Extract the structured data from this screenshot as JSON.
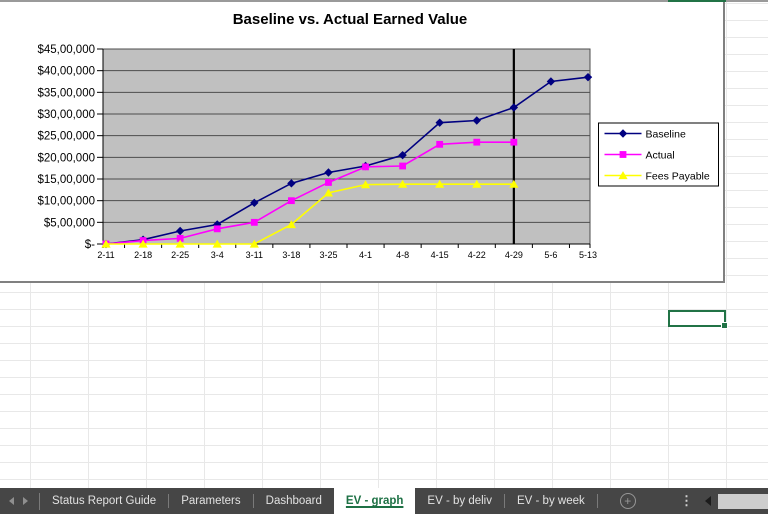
{
  "chart_data": {
    "type": "line",
    "title": "Baseline vs. Actual Earned Value",
    "categories": [
      "2-11",
      "2-18",
      "2-25",
      "3-4",
      "3-11",
      "3-18",
      "3-25",
      "4-1",
      "4-8",
      "4-15",
      "4-22",
      "4-29",
      "5-6",
      "5-13"
    ],
    "series": [
      {
        "name": "Baseline",
        "color": "#000080",
        "marker": "diamond",
        "values": [
          0,
          100000,
          300000,
          450000,
          950000,
          1400000,
          1650000,
          1800000,
          2050000,
          2800000,
          2850000,
          3150000,
          3750000,
          3850000
        ]
      },
      {
        "name": "Actual",
        "color": "#ff00ff",
        "marker": "square",
        "values": [
          0,
          80000,
          130000,
          350000,
          500000,
          1000000,
          1420000,
          1780000,
          1800000,
          2300000,
          2350000,
          2350000,
          null,
          null
        ]
      },
      {
        "name": "Fees Payable",
        "color": "#ffff00",
        "marker": "triangle",
        "values": [
          0,
          0,
          0,
          0,
          0,
          450000,
          1180000,
          1370000,
          1380000,
          1380000,
          1380000,
          1380000,
          null,
          null
        ]
      }
    ],
    "xlabel": "",
    "ylabel": "",
    "ylim": [
      0,
      4500000
    ],
    "y_tick_interval": 500000,
    "y_ticks": [
      "$45,00,000",
      "$40,00,000",
      "$35,00,000",
      "$30,00,000",
      "$25,00,000",
      "$20,00,000",
      "$15,00,000",
      "$10,00,000",
      "$5,00,000",
      "$-"
    ],
    "grid": true,
    "legend_position": "right",
    "plot_bg": "#c0c0c0",
    "status_line_category": "4-29"
  },
  "sheet_tabs": {
    "tabs": [
      {
        "label": "Status Report Guide",
        "active": false
      },
      {
        "label": "Parameters",
        "active": false
      },
      {
        "label": "Dashboard",
        "active": false
      },
      {
        "label": "EV - graph",
        "active": true
      },
      {
        "label": "EV - by deliv",
        "active": false
      },
      {
        "label": "EV - by week",
        "active": false
      }
    ]
  },
  "icons": {
    "new_sheet": "+",
    "more_options": "⋮"
  },
  "colors": {
    "excel_green": "#217346",
    "tab_bar_bg": "#464646",
    "plot_background": "#c0c0c0",
    "gridline": "#4d4d4d",
    "chart_object_border": "#808080",
    "series_baseline": "#000080",
    "series_actual": "#ff00ff",
    "series_fees_payable": "#ffff00"
  }
}
